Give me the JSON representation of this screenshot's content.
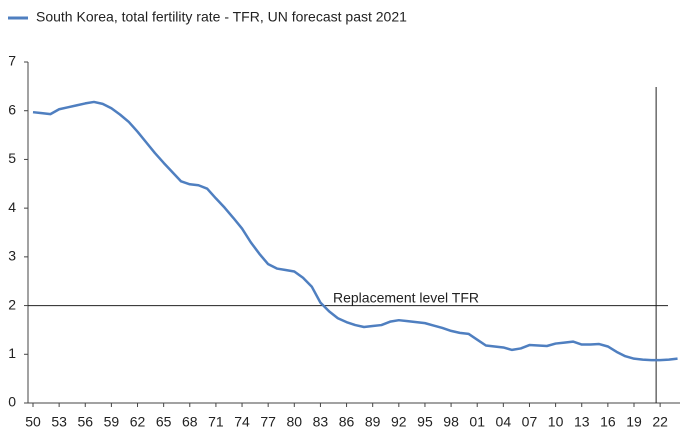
{
  "chart_data": {
    "type": "line",
    "categories": [
      "50",
      null,
      null,
      "53",
      null,
      null,
      "56",
      null,
      null,
      "59",
      null,
      null,
      "62",
      null,
      null,
      "65",
      null,
      null,
      "68",
      null,
      null,
      "71",
      null,
      null,
      "74",
      null,
      null,
      "77",
      null,
      null,
      "80",
      null,
      null,
      "83",
      null,
      null,
      "86",
      null,
      null,
      "89",
      null,
      null,
      "92",
      null,
      null,
      "95",
      null,
      null,
      "98",
      null,
      null,
      "01",
      null,
      null,
      "04",
      null,
      null,
      "07",
      null,
      null,
      "10",
      null,
      null,
      "13",
      null,
      null,
      "16",
      null,
      null,
      "19",
      null,
      null,
      "22",
      null,
      null
    ],
    "series": [
      {
        "name": "South Korea, total fertility rate - TFR, UN forecast past 2021",
        "color": "#4f7fc0",
        "values": [
          5.97,
          5.95,
          5.93,
          6.03,
          6.07,
          6.11,
          6.15,
          6.18,
          6.14,
          6.05,
          5.92,
          5.77,
          5.57,
          5.35,
          5.13,
          4.93,
          4.74,
          4.55,
          4.49,
          4.47,
          4.4,
          4.2,
          4.01,
          3.8,
          3.58,
          3.3,
          3.06,
          2.85,
          2.76,
          2.73,
          2.7,
          2.57,
          2.39,
          2.06,
          1.88,
          1.74,
          1.66,
          1.6,
          1.56,
          1.58,
          1.6,
          1.67,
          1.7,
          1.68,
          1.66,
          1.64,
          1.59,
          1.54,
          1.48,
          1.44,
          1.42,
          1.3,
          1.18,
          1.16,
          1.14,
          1.09,
          1.12,
          1.19,
          1.18,
          1.17,
          1.22,
          1.24,
          1.26,
          1.2,
          1.2,
          1.21,
          1.16,
          1.05,
          0.96,
          0.91,
          0.89,
          0.88,
          0.88,
          0.89,
          0.91
        ]
      }
    ],
    "ylim": [
      0,
      7
    ],
    "yticks": [
      0,
      1,
      2,
      3,
      4,
      5,
      6,
      7
    ],
    "reference_line": {
      "value": 2,
      "label": "Replacement level TFR"
    },
    "forecast_line_category": "22",
    "legend": "top-left"
  }
}
